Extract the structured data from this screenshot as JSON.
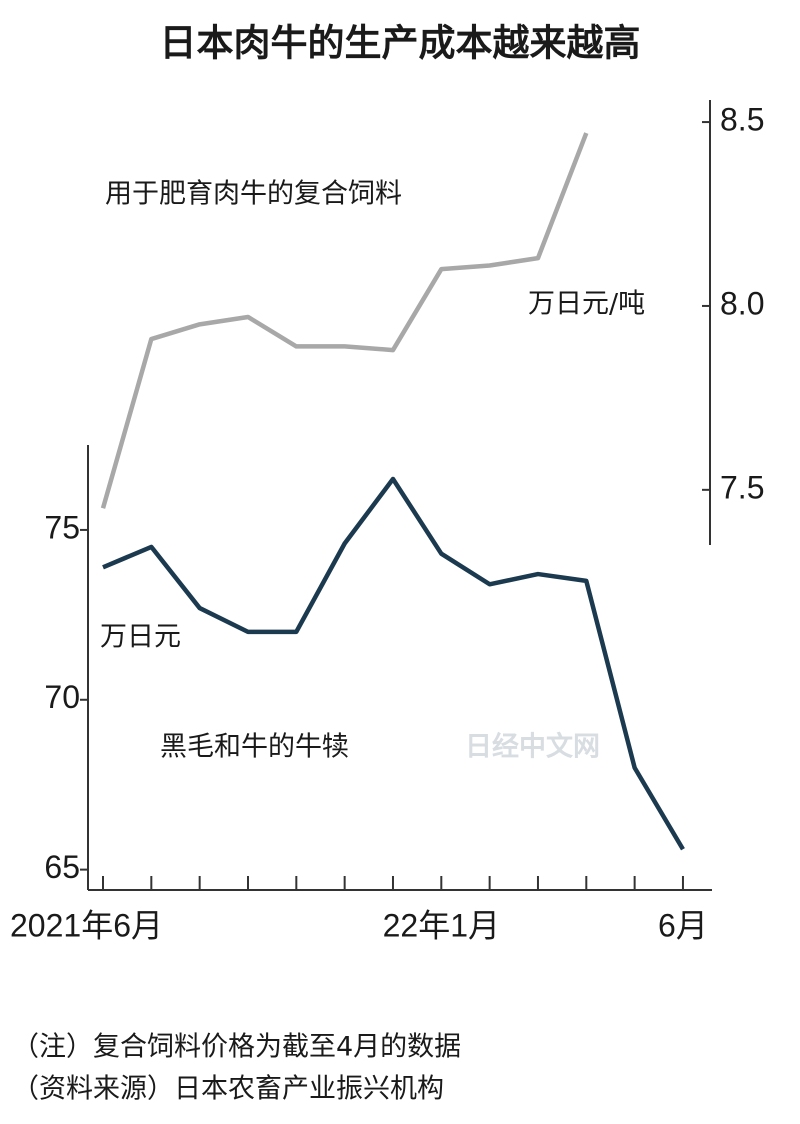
{
  "chart_data": {
    "type": "line",
    "title": "日本肉牛的生产成本越来越高",
    "categories": [
      "2021年6月",
      null,
      null,
      null,
      null,
      null,
      null,
      "22年1月",
      null,
      null,
      null,
      null,
      "6月"
    ],
    "series": [
      {
        "name": "用于肥育肉牛的复合饲料",
        "color": "#a8a8a8",
        "axis": "y2",
        "values": [
          7.45,
          7.91,
          7.95,
          7.97,
          7.89,
          7.89,
          7.88,
          8.1,
          8.11,
          8.13,
          8.47,
          null,
          null
        ]
      },
      {
        "name": "黑毛和牛的牛犊",
        "color": "#1c3a4f",
        "values": [
          73.9,
          74.5,
          72.7,
          72.0,
          72.0,
          74.6,
          76.5,
          74.3,
          73.4,
          73.7,
          73.5,
          68.0,
          65.6
        ]
      }
    ],
    "ylim": [
      64.4,
      77.5
    ],
    "yticks": [
      65,
      70,
      75
    ],
    "y2lim": [
      7.35,
      8.56
    ],
    "y2ticks": [
      7.5,
      {
        "value": 8,
        "label": "8.0"
      },
      8.5
    ],
    "ylabel": "万日元",
    "y2label": "万日元/吨",
    "annotations": [
      "日经中文网"
    ],
    "notes": [
      "（注）复合饲料价格为截至4月的数据",
      "（资料来源）日本农畜产业振兴机构"
    ]
  }
}
